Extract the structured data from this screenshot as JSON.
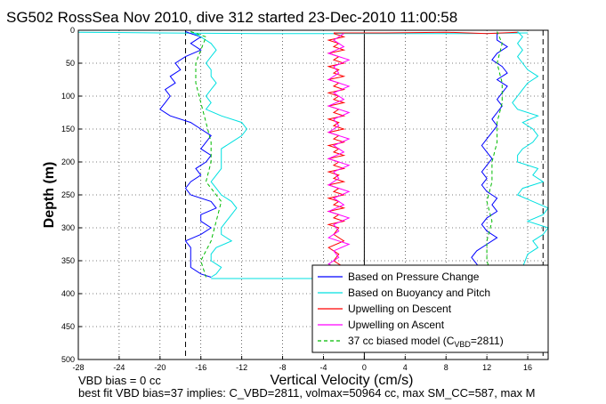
{
  "chart_data": {
    "type": "line",
    "title": "SG502 RossSea Nov 2010, dive 312 started 23-Dec-2010 11:00:58",
    "xlabel": "Vertical Velocity (cm/s)",
    "ylabel": "Depth (m)",
    "xlim": [
      -28,
      18
    ],
    "ylim": [
      0,
      500
    ],
    "y_reversed": true,
    "x_ticks": [
      -28,
      -24,
      -20,
      -16,
      -12,
      -8,
      -4,
      0,
      4,
      8,
      12,
      16
    ],
    "y_ticks": [
      0,
      50,
      100,
      150,
      200,
      250,
      300,
      350,
      400,
      450,
      500
    ],
    "grid": true,
    "legend_position": "bottom-right",
    "vlines": [
      -17.5,
      0,
      17.5
    ],
    "series": [
      {
        "name": "Based on Pressure Change",
        "color": "#0000ff",
        "descent": [
          [
            -17.5,
            2
          ],
          [
            -17,
            5
          ],
          [
            -16,
            10
          ],
          [
            -17,
            20
          ],
          [
            -16,
            30
          ],
          [
            -17.5,
            40
          ],
          [
            -18.5,
            50
          ],
          [
            -18,
            60
          ],
          [
            -19,
            70
          ],
          [
            -18.5,
            80
          ],
          [
            -19.5,
            90
          ],
          [
            -19,
            100
          ],
          [
            -19.5,
            110
          ],
          [
            -20,
            120
          ],
          [
            -19,
            130
          ],
          [
            -17,
            140
          ],
          [
            -16,
            150
          ],
          [
            -15,
            160
          ],
          [
            -15.5,
            170
          ],
          [
            -16,
            180
          ],
          [
            -15,
            190
          ],
          [
            -15.5,
            200
          ],
          [
            -16.5,
            210
          ],
          [
            -16,
            220
          ],
          [
            -17,
            230
          ],
          [
            -17.5,
            240
          ],
          [
            -17,
            250
          ],
          [
            -15,
            260
          ],
          [
            -14.5,
            270
          ],
          [
            -16,
            280
          ],
          [
            -16,
            290
          ],
          [
            -15,
            300
          ],
          [
            -16,
            310
          ],
          [
            -17.5,
            320
          ],
          [
            -17,
            330
          ],
          [
            -17,
            340
          ],
          [
            -17,
            350
          ],
          [
            -17,
            360
          ],
          [
            -16,
            370
          ],
          [
            -15,
            375
          ]
        ],
        "ascent": [
          [
            12,
            375
          ],
          [
            11.5,
            365
          ],
          [
            11,
            355
          ],
          [
            10.5,
            345
          ],
          [
            11,
            335
          ],
          [
            12,
            325
          ],
          [
            13,
            315
          ],
          [
            12,
            305
          ],
          [
            11.5,
            295
          ],
          [
            12,
            285
          ],
          [
            13,
            275
          ],
          [
            12.5,
            265
          ],
          [
            13,
            255
          ],
          [
            12,
            245
          ],
          [
            11.5,
            235
          ],
          [
            12,
            225
          ],
          [
            11.5,
            215
          ],
          [
            12,
            205
          ],
          [
            12.5,
            195
          ],
          [
            12,
            185
          ],
          [
            11.5,
            175
          ],
          [
            12,
            165
          ],
          [
            12.5,
            155
          ],
          [
            13,
            145
          ],
          [
            12.5,
            135
          ],
          [
            13,
            125
          ],
          [
            13.5,
            115
          ],
          [
            13,
            105
          ],
          [
            13.5,
            95
          ],
          [
            14,
            85
          ],
          [
            13,
            75
          ],
          [
            14,
            65
          ],
          [
            13.5,
            55
          ],
          [
            12.5,
            45
          ],
          [
            13,
            35
          ],
          [
            14,
            25
          ],
          [
            13,
            15
          ],
          [
            13,
            5
          ]
        ]
      },
      {
        "name": "Based on Buoyancy and Pitch",
        "color": "#00e0e0",
        "descent": [
          [
            -17,
            2
          ],
          [
            -16,
            10
          ],
          [
            -15,
            20
          ],
          [
            -14.5,
            30
          ],
          [
            -15,
            40
          ],
          [
            -15.5,
            50
          ],
          [
            -15,
            60
          ],
          [
            -15,
            70
          ],
          [
            -14.5,
            80
          ],
          [
            -15,
            90
          ],
          [
            -15.5,
            100
          ],
          [
            -15,
            110
          ],
          [
            -15.5,
            120
          ],
          [
            -14,
            130
          ],
          [
            -12,
            140
          ],
          [
            -11.5,
            150
          ],
          [
            -12,
            160
          ],
          [
            -13,
            170
          ],
          [
            -14,
            180
          ],
          [
            -14,
            190
          ],
          [
            -14,
            200
          ],
          [
            -14,
            210
          ],
          [
            -14.5,
            220
          ],
          [
            -15,
            230
          ],
          [
            -14.5,
            240
          ],
          [
            -14,
            250
          ],
          [
            -13,
            260
          ],
          [
            -12.5,
            270
          ],
          [
            -13,
            280
          ],
          [
            -13.5,
            290
          ],
          [
            -14,
            300
          ],
          [
            -14,
            310
          ],
          [
            -13,
            320
          ],
          [
            -14.5,
            330
          ],
          [
            -15,
            340
          ],
          [
            -15,
            350
          ],
          [
            -14,
            360
          ],
          [
            -14.5,
            370
          ],
          [
            -15,
            375
          ]
        ],
        "ascent": [
          [
            -15,
            377
          ],
          [
            -10,
            377
          ],
          [
            0,
            377
          ],
          [
            10,
            377
          ],
          [
            15.5,
            377
          ],
          [
            15.5,
            360
          ],
          [
            16,
            340
          ],
          [
            17,
            330
          ],
          [
            16.5,
            320
          ],
          [
            17.5,
            310
          ],
          [
            18,
            300
          ],
          [
            16,
            290
          ],
          [
            17.5,
            280
          ],
          [
            18,
            270
          ],
          [
            16.5,
            260
          ],
          [
            15,
            250
          ],
          [
            15.5,
            240
          ],
          [
            17.5,
            230
          ],
          [
            16.5,
            220
          ],
          [
            17,
            210
          ],
          [
            15,
            200
          ],
          [
            15,
            190
          ],
          [
            15.5,
            180
          ],
          [
            16.5,
            170
          ],
          [
            17,
            160
          ],
          [
            16.5,
            150
          ],
          [
            15.5,
            140
          ],
          [
            17,
            130
          ],
          [
            15,
            120
          ],
          [
            14.5,
            110
          ],
          [
            15,
            100
          ],
          [
            15.5,
            90
          ],
          [
            16,
            80
          ],
          [
            17,
            70
          ],
          [
            16,
            60
          ],
          [
            15.5,
            50
          ],
          [
            15,
            40
          ],
          [
            15.5,
            30
          ],
          [
            15,
            20
          ],
          [
            15.5,
            10
          ],
          [
            15,
            2
          ]
        ]
      },
      {
        "name": "Upwelling on Descent",
        "color": "#ff0000",
        "descent": [
          [
            -3,
            5
          ],
          [
            -2,
            10
          ],
          [
            -3.5,
            15
          ],
          [
            -2.5,
            20
          ],
          [
            -3,
            25
          ],
          [
            -2,
            30
          ],
          [
            -3.5,
            35
          ],
          [
            -2.5,
            40
          ],
          [
            -3,
            45
          ],
          [
            -2,
            50
          ],
          [
            -3.5,
            55
          ],
          [
            -2.5,
            60
          ],
          [
            -3,
            65
          ],
          [
            -2,
            70
          ],
          [
            -3.5,
            75
          ],
          [
            -2.5,
            80
          ],
          [
            -3,
            85
          ],
          [
            -2,
            90
          ],
          [
            -3.5,
            95
          ],
          [
            -2.5,
            100
          ],
          [
            -3,
            105
          ],
          [
            -2,
            110
          ],
          [
            -3.5,
            115
          ],
          [
            -2.5,
            120
          ],
          [
            -3,
            125
          ],
          [
            -2,
            130
          ],
          [
            -3.5,
            135
          ],
          [
            -2.5,
            140
          ],
          [
            -3,
            145
          ],
          [
            -2,
            150
          ],
          [
            -3.5,
            155
          ],
          [
            -2.5,
            160
          ],
          [
            -3,
            165
          ],
          [
            -2,
            170
          ],
          [
            -3.5,
            175
          ],
          [
            -2.5,
            180
          ],
          [
            -3,
            185
          ],
          [
            -2,
            190
          ],
          [
            -3.5,
            195
          ],
          [
            -2.5,
            200
          ],
          [
            -3,
            205
          ],
          [
            -2,
            210
          ],
          [
            -3.5,
            215
          ],
          [
            -2.5,
            220
          ],
          [
            -3,
            225
          ],
          [
            -2,
            230
          ],
          [
            -3.5,
            235
          ],
          [
            -2.5,
            240
          ],
          [
            -3,
            245
          ],
          [
            -2,
            250
          ],
          [
            -3.5,
            255
          ],
          [
            -2.5,
            260
          ],
          [
            -3,
            265
          ],
          [
            -2,
            270
          ],
          [
            -3.5,
            275
          ],
          [
            -2.5,
            280
          ],
          [
            -3,
            285
          ],
          [
            -2,
            290
          ],
          [
            -3.5,
            295
          ],
          [
            -2.5,
            300
          ],
          [
            -3,
            310
          ],
          [
            -2,
            320
          ],
          [
            -3.5,
            330
          ],
          [
            -2.5,
            340
          ],
          [
            -3,
            350
          ],
          [
            -2,
            360
          ],
          [
            -3.5,
            370
          ],
          [
            -2.5,
            375
          ]
        ]
      },
      {
        "name": "Upwelling on Ascent",
        "color": "#ff00ff",
        "ascent": [
          [
            -3,
            375
          ],
          [
            -2,
            365
          ],
          [
            -3.5,
            355
          ],
          [
            -2.5,
            345
          ],
          [
            -3,
            335
          ],
          [
            -1.5,
            325
          ],
          [
            -3.5,
            315
          ],
          [
            -2.5,
            305
          ],
          [
            -3,
            295
          ],
          [
            -1.5,
            285
          ],
          [
            -3.5,
            275
          ],
          [
            -2,
            265
          ],
          [
            -3,
            255
          ],
          [
            -1.5,
            245
          ],
          [
            -3.5,
            235
          ],
          [
            -2.5,
            225
          ],
          [
            -3,
            215
          ],
          [
            -1.5,
            205
          ],
          [
            -3.5,
            195
          ],
          [
            -2,
            185
          ],
          [
            -3,
            175
          ],
          [
            -1.5,
            165
          ],
          [
            -3.5,
            155
          ],
          [
            -2.5,
            145
          ],
          [
            -3,
            135
          ],
          [
            -1.5,
            125
          ],
          [
            -3.5,
            115
          ],
          [
            -2,
            105
          ],
          [
            -3,
            95
          ],
          [
            -1.5,
            85
          ],
          [
            -3.5,
            75
          ],
          [
            -2.5,
            65
          ],
          [
            -3,
            55
          ],
          [
            -1.5,
            45
          ],
          [
            -3.5,
            35
          ],
          [
            -2,
            25
          ],
          [
            -3,
            15
          ],
          [
            -2,
            5
          ]
        ]
      },
      {
        "name": "37 cc biased model (C",
        "name_sub": "VBD",
        "name_suffix": "=2811)",
        "color": "#00bb00",
        "dashed": true,
        "descent": [
          [
            -17,
            2
          ],
          [
            -15.5,
            10
          ],
          [
            -16,
            30
          ],
          [
            -16.5,
            50
          ],
          [
            -16.5,
            80
          ],
          [
            -16,
            110
          ],
          [
            -15.5,
            140
          ],
          [
            -15,
            170
          ],
          [
            -15,
            200
          ],
          [
            -15.5,
            230
          ],
          [
            -14,
            260
          ],
          [
            -14.5,
            290
          ],
          [
            -15,
            320
          ],
          [
            -16,
            350
          ],
          [
            -15.5,
            375
          ]
        ],
        "ascent": [
          [
            12.5,
            375
          ],
          [
            12,
            350
          ],
          [
            12,
            320
          ],
          [
            12.5,
            290
          ],
          [
            12,
            260
          ],
          [
            12.5,
            230
          ],
          [
            12.5,
            200
          ],
          [
            13,
            170
          ],
          [
            13,
            140
          ],
          [
            13.5,
            110
          ],
          [
            13.5,
            80
          ],
          [
            13,
            50
          ],
          [
            13.5,
            20
          ],
          [
            13,
            2
          ]
        ]
      }
    ],
    "surface_segment": {
      "color": "#00e0e0",
      "points": [
        [
          -28,
          3
        ],
        [
          -20,
          4
        ],
        [
          -10,
          5
        ],
        [
          0,
          5
        ],
        [
          10,
          5
        ],
        [
          16,
          4
        ]
      ]
    },
    "surface_red": {
      "color": "#ff0000",
      "points": [
        [
          -3,
          4
        ],
        [
          2,
          4
        ],
        [
          8,
          3
        ],
        [
          12,
          5
        ],
        [
          15,
          3
        ]
      ]
    }
  },
  "bottom_text": {
    "line1": "VBD bias = 0 cc",
    "line2": "best fit VBD bias=37 implies: C_VBD=2811, volmax=50964 cc, max SM_CC=587, max M"
  }
}
